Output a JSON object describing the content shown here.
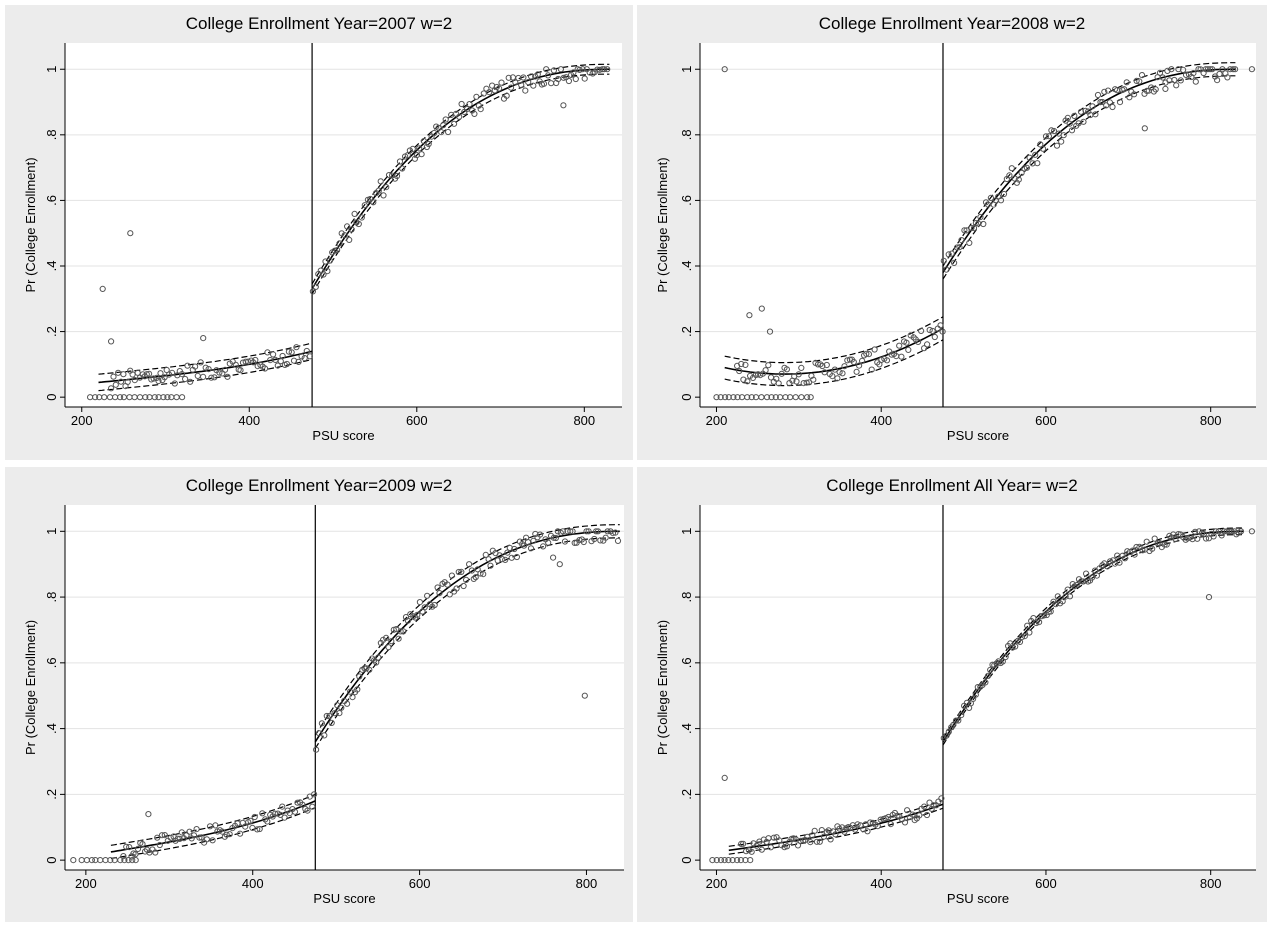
{
  "colors": {
    "panel": "#ececec",
    "plot": "#ffffff",
    "points": "#555555",
    "lines": "#000000"
  },
  "chart_data": [
    {
      "type": "scatter",
      "title": "College Enrollment Year=2007 w=2",
      "xlabel": "PSU score",
      "ylabel": "Pr (College Enrollment)",
      "xlim": [
        180,
        845
      ],
      "ylim": [
        -0.03,
        1.08
      ],
      "xticks": [
        200,
        400,
        600,
        800
      ],
      "yticks": [
        0,
        0.2,
        0.4,
        0.6,
        0.8,
        1
      ],
      "ytick_labels": [
        "0",
        ".2",
        ".4",
        ".6",
        ".8",
        "1"
      ],
      "cutoff": 475,
      "scatter_points": [
        [
          225,
          0.33
        ],
        [
          258,
          0.5
        ],
        [
          235,
          0.17
        ],
        [
          345,
          0.18
        ],
        [
          775,
          0.89
        ]
      ],
      "zero_points_range": [
        210,
        320
      ],
      "left_segment": {
        "x": [
          220,
          475
        ],
        "fit": [
          0.045,
          0.14
        ],
        "ci": 0.025,
        "noise": 0.028
      },
      "right_segment": {
        "x": [
          475,
          830
        ],
        "start": 0.33,
        "end": 1.0,
        "ci": 0.015,
        "noise": 0.03
      },
      "grid": true
    },
    {
      "type": "scatter",
      "title": "College Enrollment Year=2008 w=2",
      "xlabel": "PSU score",
      "ylabel": "Pr (College Enrollment)",
      "xlim": [
        180,
        855
      ],
      "ylim": [
        -0.03,
        1.08
      ],
      "xticks": [
        200,
        400,
        600,
        800
      ],
      "yticks": [
        0,
        0.2,
        0.4,
        0.6,
        0.8,
        1
      ],
      "ytick_labels": [
        "0",
        ".2",
        ".4",
        ".6",
        ".8",
        "1"
      ],
      "cutoff": 475,
      "scatter_points": [
        [
          210,
          1.0
        ],
        [
          240,
          0.25
        ],
        [
          255,
          0.27
        ],
        [
          265,
          0.2
        ],
        [
          720,
          0.82
        ],
        [
          745,
          0.94
        ],
        [
          850,
          1.0
        ]
      ],
      "zero_points_range": [
        200,
        320
      ],
      "left_segment": {
        "x": [
          210,
          475
        ],
        "fit_u": [
          0.09,
          0.06,
          0.21
        ],
        "ci": 0.035,
        "noise": 0.03
      },
      "right_segment": {
        "x": [
          475,
          830
        ],
        "start": 0.38,
        "end": 1.0,
        "ci": 0.02,
        "noise": 0.035
      },
      "grid": true
    },
    {
      "type": "scatter",
      "title": "College Enrollment Year=2009 w=2",
      "xlabel": "PSU score",
      "ylabel": "Pr (College Enrollment)",
      "xlim": [
        175,
        845
      ],
      "ylim": [
        -0.03,
        1.08
      ],
      "xticks": [
        200,
        400,
        600,
        800
      ],
      "yticks": [
        0,
        0.2,
        0.4,
        0.6,
        0.8,
        1
      ],
      "ytick_labels": [
        "0",
        ".2",
        ".4",
        ".6",
        ".8",
        "1"
      ],
      "cutoff": 475,
      "scatter_points": [
        [
          185,
          0.0
        ],
        [
          275,
          0.14
        ],
        [
          760,
          0.92
        ],
        [
          768,
          0.9
        ],
        [
          798,
          0.5
        ]
      ],
      "zero_points_range": [
        195,
        265
      ],
      "left_segment": {
        "x": [
          230,
          475
        ],
        "fit": [
          0.025,
          0.18
        ],
        "ci": 0.02,
        "noise": 0.025
      },
      "right_segment": {
        "x": [
          475,
          840
        ],
        "start": 0.36,
        "end": 1.0,
        "ci": 0.02,
        "noise": 0.03
      },
      "grid": true
    },
    {
      "type": "scatter",
      "title": "College Enrollment All Year= w=2",
      "xlabel": "PSU score",
      "ylabel": "Pr (College Enrollment)",
      "xlim": [
        180,
        855
      ],
      "ylim": [
        -0.03,
        1.08
      ],
      "xticks": [
        200,
        400,
        600,
        800
      ],
      "yticks": [
        0,
        0.2,
        0.4,
        0.6,
        0.8,
        1
      ],
      "ytick_labels": [
        "0",
        ".2",
        ".4",
        ".6",
        ".8",
        "1"
      ],
      "cutoff": 475,
      "scatter_points": [
        [
          210,
          0.25
        ],
        [
          798,
          0.8
        ],
        [
          850,
          1.0
        ]
      ],
      "zero_points_range": [
        195,
        245
      ],
      "left_segment": {
        "x": [
          215,
          475
        ],
        "fit": [
          0.03,
          0.17
        ],
        "ci": 0.012,
        "noise": 0.02
      },
      "right_segment": {
        "x": [
          475,
          840
        ],
        "start": 0.36,
        "end": 1.0,
        "ci": 0.01,
        "noise": 0.018
      },
      "grid": true
    }
  ]
}
